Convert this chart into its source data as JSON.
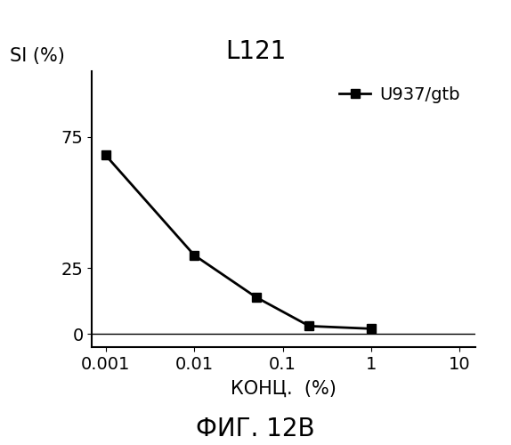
{
  "title": "L121",
  "ylabel_text": "SI (%)",
  "xlabel": "КОНЦ.  (%)",
  "caption": "ФИГ. 12B",
  "legend_label": "U937/gtb",
  "x_data": [
    0.001,
    0.01,
    0.05,
    0.2,
    1.0
  ],
  "y_data": [
    68,
    30,
    14,
    3,
    2
  ],
  "ylim": [
    -5,
    100
  ],
  "yticks": [
    0,
    25,
    75
  ],
  "xtick_labels": [
    "0.001",
    "0.01",
    "0.1",
    "1",
    "10"
  ],
  "xtick_values": [
    0.001,
    0.01,
    0.1,
    1,
    10
  ],
  "line_color": "#000000",
  "marker": "s",
  "marker_size": 7,
  "line_width": 2,
  "background_color": "#ffffff",
  "title_fontsize": 20,
  "label_fontsize": 15,
  "tick_fontsize": 14,
  "legend_fontsize": 14,
  "caption_fontsize": 20,
  "ylabel_fontsize": 15
}
